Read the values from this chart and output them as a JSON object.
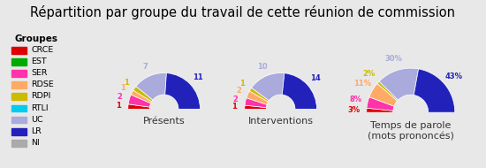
{
  "title": "Répartition par groupe du travail de cette réunion de commission",
  "groups": [
    "CRCE",
    "EST",
    "SER",
    "RDSE",
    "RDPI",
    "RTLI",
    "UC",
    "LR",
    "NI"
  ],
  "colors": [
    "#dd0000",
    "#00aa00",
    "#ff33aa",
    "#ffaa66",
    "#ccbb00",
    "#00ccee",
    "#aaaadd",
    "#2222bb",
    "#aaaaaa"
  ],
  "legend_title": "Groupes",
  "charts": [
    {
      "label": "Présents",
      "values": [
        1,
        0,
        2,
        1,
        1,
        0,
        7,
        11,
        0
      ],
      "annotations": [
        "1",
        "0",
        "2",
        "1",
        "1",
        "0",
        "7",
        "11",
        "0"
      ]
    },
    {
      "label": "Interventions",
      "values": [
        1,
        0,
        2,
        2,
        1,
        0,
        10,
        14,
        0
      ],
      "annotations": [
        "1",
        "0",
        "2",
        "2",
        "1",
        "0",
        "10",
        "14",
        "0"
      ]
    },
    {
      "label": "Temps de parole\n(mots prononcés)",
      "values": [
        3,
        0,
        8,
        11,
        2,
        0,
        30,
        43,
        0
      ],
      "annotations": [
        "3%",
        "0%",
        "8%",
        "11%",
        "2%",
        "0%",
        "30%",
        "43%",
        "0%"
      ]
    }
  ],
  "background_color": "#e8e8e8",
  "annotation_colors": [
    "#dd0000",
    "#00aa00",
    "#ff33aa",
    "#ffaa66",
    "#ccbb00",
    "#00ccee",
    "#aaaadd",
    "#2222bb",
    "#aaaaaa"
  ],
  "title_fontsize": 10.5,
  "label_fontsize": 8
}
